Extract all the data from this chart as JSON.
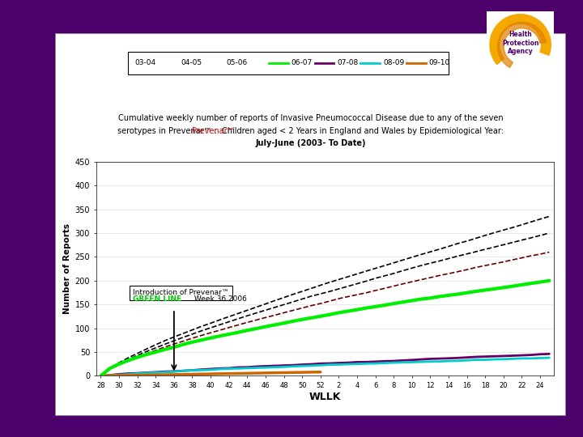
{
  "background_outer": "#4B006B",
  "chart_bg": "#ffffff",
  "title_line1": "Cumulative weekly number of reports of Invasive Pneumococcal Disease due to any of the seven",
  "title_line2_before": "serotypes in ",
  "title_prevenar": "Prevenar™",
  "title_line2_after": " :  Children aged < 2 Years in England and Wales by Epidemiological Year:",
  "title_line3": "July-June (2003- To Date)",
  "prevenar_color": "#cc0000",
  "xlabel": "WLLK",
  "ylabel": "Number of Reports",
  "ylim": [
    0,
    450
  ],
  "yticks": [
    0,
    50,
    100,
    150,
    200,
    250,
    300,
    350,
    400,
    450
  ],
  "series_order": [
    "03-04",
    "04-05",
    "05-06",
    "06-07",
    "07-08",
    "08-09",
    "09-10"
  ],
  "series_colors": {
    "03-04": "#000000",
    "04-05": "#000000",
    "05-06": "#660000",
    "06-07": "#00ee00",
    "07-08": "#660066",
    "08-09": "#00cccc",
    "09-10": "#cc6600"
  },
  "series_linestyles": {
    "03-04": "--",
    "04-05": "--",
    "05-06": "--",
    "06-07": "-",
    "07-08": "-",
    "08-09": "-",
    "09-10": "-"
  },
  "series_linewidths": {
    "03-04": 1.2,
    "04-05": 1.2,
    "05-06": 1.2,
    "06-07": 3.0,
    "07-08": 2.0,
    "08-09": 2.0,
    "09-10": 2.5
  },
  "series_end_values": {
    "03-04": 335,
    "04-05": 300,
    "05-06": 260,
    "06-07": 200,
    "07-08": 46,
    "08-09": 38,
    "09-10": 8
  },
  "orange_truncate_idx": 24,
  "intro_idx": 8,
  "annotation_line1": "Introduction of Prevenar™",
  "annotation_line2_green": "GREEN LINE",
  "annotation_line2_black": " Week 36 2006",
  "annotation_green_color": "#00cc00",
  "logo_bg": "#ffffff",
  "logo_orange": "#f5a800",
  "logo_text_color": "#4B006B",
  "legend_items": [
    {
      "label": "03-04",
      "color": "#000000",
      "ls": "--"
    },
    {
      "label": "04-05",
      "color": "#000000",
      "ls": "--"
    },
    {
      "label": "05-06",
      "color": "#000000",
      "ls": "--"
    },
    {
      "label": "06-07",
      "color": "#00ee00",
      "ls": "-"
    },
    {
      "label": "07-08",
      "color": "#660066",
      "ls": "-"
    },
    {
      "label": "08-09",
      "color": "#00cccc",
      "ls": "-"
    },
    {
      "label": "09-10",
      "color": "#cc6600",
      "ls": "-"
    }
  ]
}
